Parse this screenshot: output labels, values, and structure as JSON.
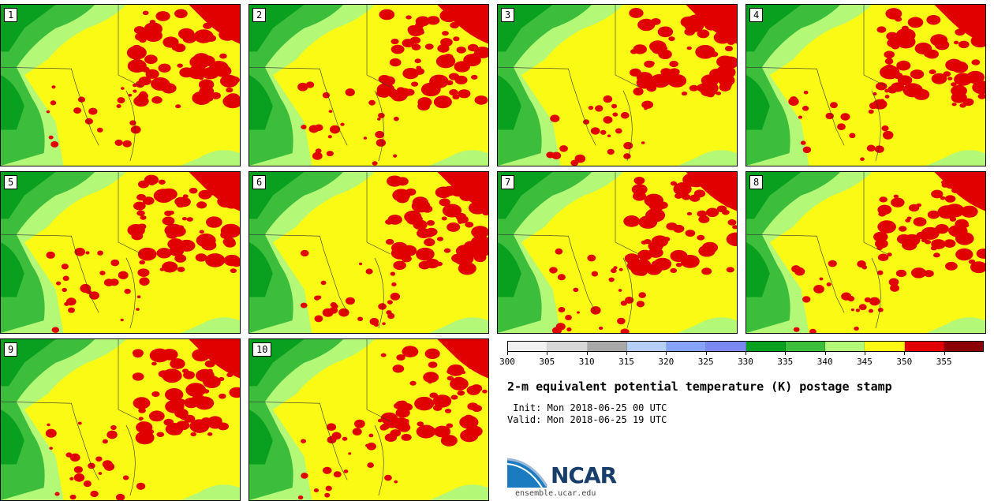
{
  "panels": [
    {
      "label": "1"
    },
    {
      "label": "2"
    },
    {
      "label": "3"
    },
    {
      "label": "4"
    },
    {
      "label": "5"
    },
    {
      "label": "6"
    },
    {
      "label": "7"
    },
    {
      "label": "8"
    },
    {
      "label": "9"
    },
    {
      "label": "10"
    }
  ],
  "colorbar": {
    "colors": [
      "#f0f0f0",
      "#d8d8d8",
      "#a8a8a8",
      "#b4cff8",
      "#86a3f8",
      "#7c89f0",
      "#08a01e",
      "#3cbd3c",
      "#b4f878",
      "#fafa14",
      "#e10000",
      "#8b0000"
    ],
    "ticks": [
      "300",
      "305",
      "310",
      "315",
      "320",
      "325",
      "330",
      "335",
      "340",
      "345",
      "350",
      "355"
    ]
  },
  "title": "2-m equivalent potential temperature (K) postage stamp",
  "init": " Init: Mon 2018-06-25 00 UTC",
  "valid": "Valid: Mon 2018-06-25 19 UTC",
  "logo": {
    "name": "NCAR",
    "url": "ensemble.ucar.edu"
  }
}
